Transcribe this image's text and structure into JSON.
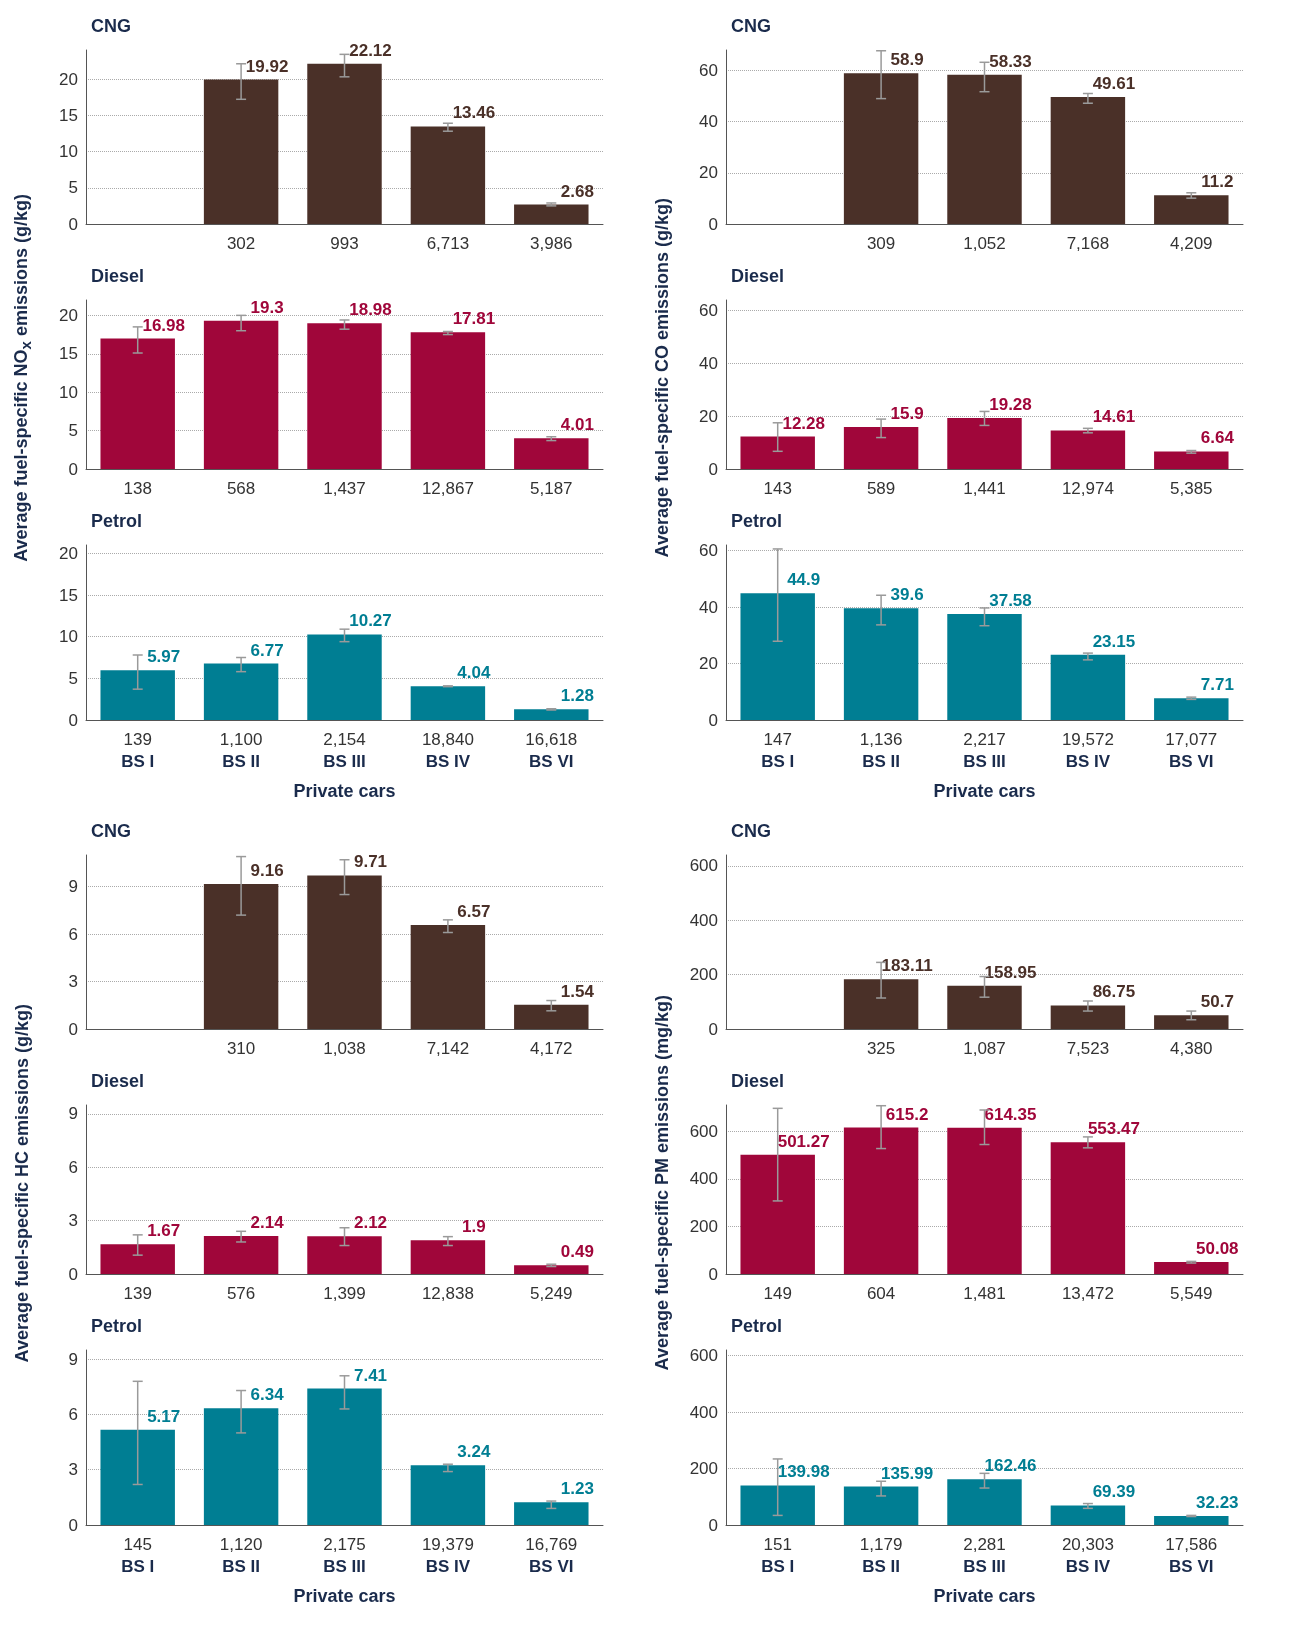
{
  "chart_data": [
    {
      "type": "bar",
      "title": "CNG",
      "categories": [
        null,
        "302",
        "993",
        "6,713",
        "3,986"
      ],
      "values": [
        null,
        19.92,
        22.12,
        13.46,
        2.68
      ],
      "errors": [
        null,
        [
          17.2,
          22.1
        ],
        [
          20.3,
          23.4
        ],
        [
          12.8,
          13.9
        ],
        [
          2.5,
          2.9
        ]
      ],
      "color": "#4a3028",
      "data_labels": true,
      "ylim": [
        0,
        24
      ],
      "yticks": [
        0,
        5,
        10,
        15,
        20
      ],
      "grid": "y"
    },
    {
      "type": "bar",
      "title": "Diesel",
      "ylabel": "Average fuel-specific NO$_{x}$ emissions (g/kg)",
      "categories": [
        "138",
        "568",
        "1,437",
        "12,867",
        "5,187"
      ],
      "values": [
        16.98,
        19.3,
        18.98,
        17.81,
        4.01
      ],
      "errors": [
        [
          15.1,
          18.5
        ],
        [
          18.0,
          20.0
        ],
        [
          18.2,
          19.4
        ],
        [
          17.5,
          17.9
        ],
        [
          3.7,
          4.2
        ]
      ],
      "color": "#a0063a",
      "data_labels": true,
      "ylim": [
        0,
        22
      ],
      "yticks": [
        0,
        5,
        10,
        15,
        20
      ],
      "grid": "y"
    },
    {
      "type": "bar",
      "title": "Petrol",
      "xlabel": "Private cars",
      "categories": [
        "139\nBS I",
        "1,100\nBS II",
        "2,154\nBS III",
        "18,840\nBS IV",
        "16,618\nBS VI"
      ],
      "values": [
        5.97,
        6.77,
        10.27,
        4.04,
        1.28
      ],
      "errors": [
        [
          3.7,
          7.8
        ],
        [
          5.8,
          7.5
        ],
        [
          9.4,
          10.9
        ],
        [
          4.0,
          4.1
        ],
        [
          1.2,
          1.35
        ]
      ],
      "color": "#007e93",
      "data_labels": true,
      "ylim": [
        0,
        21
      ],
      "yticks": [
        0,
        5,
        10,
        15,
        20
      ],
      "grid": "y"
    },
    {
      "type": "bar",
      "title": "CNG",
      "categories": [
        null,
        "309",
        "1,052",
        "7,168",
        "4,209"
      ],
      "values": [
        null,
        58.9,
        58.33,
        49.61,
        11.2
      ],
      "errors": [
        null,
        [
          49.0,
          67.7
        ],
        [
          51.7,
          63.2
        ],
        [
          47.2,
          51.0
        ],
        [
          10.1,
          12.2
        ]
      ],
      "color": "#4a3028",
      "data_labels": true,
      "ylim": [
        0,
        68
      ],
      "yticks": [
        0,
        20,
        40,
        60
      ],
      "grid": "y"
    },
    {
      "type": "bar",
      "title": "Diesel",
      "ylabel": "Average fuel-specific CO emissions (g/kg)",
      "categories": [
        "143",
        "589",
        "1,441",
        "12,974",
        "5,385"
      ],
      "values": [
        12.28,
        15.9,
        19.28,
        14.61,
        6.64
      ],
      "errors": [
        [
          6.7,
          17.5
        ],
        [
          11.9,
          18.9
        ],
        [
          16.5,
          21.8
        ],
        [
          13.7,
          15.4
        ],
        [
          6.0,
          7.0
        ]
      ],
      "color": "#a0063a",
      "data_labels": true,
      "ylim": [
        0,
        64
      ],
      "yticks": [
        0,
        20,
        40,
        60
      ],
      "grid": "y"
    },
    {
      "type": "bar",
      "title": "Petrol",
      "xlabel": "Private cars",
      "categories": [
        "147\nBS I",
        "1,136\nBS II",
        "2,217\nBS III",
        "19,572\nBS IV",
        "17,077\nBS VI"
      ],
      "values": [
        44.9,
        39.6,
        37.58,
        23.15,
        7.71
      ],
      "errors": [
        [
          27.9,
          60.6
        ],
        [
          33.7,
          44.2
        ],
        [
          33.4,
          39.7
        ],
        [
          21.3,
          23.7
        ],
        [
          7.3,
          8.1
        ]
      ],
      "color": "#007e93",
      "data_labels": true,
      "ylim": [
        0,
        62
      ],
      "yticks": [
        0,
        20,
        40,
        60
      ],
      "grid": "y"
    },
    {
      "type": "bar",
      "title": "CNG",
      "categories": [
        null,
        "310",
        "1,038",
        "7,142",
        "4,172"
      ],
      "values": [
        null,
        9.16,
        9.71,
        6.57,
        1.54
      ],
      "errors": [
        null,
        [
          7.2,
          10.9
        ],
        [
          8.5,
          10.7
        ],
        [
          6.1,
          6.9
        ],
        [
          1.15,
          1.8
        ]
      ],
      "color": "#4a3028",
      "data_labels": true,
      "ylim": [
        0,
        11
      ],
      "yticks": [
        0,
        3,
        6,
        9
      ],
      "grid": "y"
    },
    {
      "type": "bar",
      "title": "Diesel",
      "ylabel": "Average fuel-specific HC emissions (g/kg)",
      "categories": [
        "139",
        "576",
        "1,399",
        "12,838",
        "5,249"
      ],
      "values": [
        1.67,
        2.14,
        2.12,
        1.9,
        0.49
      ],
      "errors": [
        [
          1.06,
          2.2
        ],
        [
          1.8,
          2.4
        ],
        [
          1.6,
          2.6
        ],
        [
          1.6,
          2.1
        ],
        [
          0.42,
          0.55
        ]
      ],
      "color": "#a0063a",
      "data_labels": true,
      "ylim": [
        0,
        9.5
      ],
      "yticks": [
        0,
        3,
        6,
        9
      ],
      "grid": "y"
    },
    {
      "type": "bar",
      "title": "Petrol",
      "xlabel": "Private cars",
      "categories": [
        "145\nBS I",
        "1,120\nBS II",
        "2,175\nBS III",
        "19,379\nBS IV",
        "16,769\nBS VI"
      ],
      "values": [
        5.17,
        6.34,
        7.41,
        3.24,
        1.23
      ],
      "errors": [
        [
          2.2,
          7.8
        ],
        [
          5.0,
          7.3
        ],
        [
          6.3,
          8.1
        ],
        [
          2.9,
          3.3
        ],
        [
          0.9,
          1.3
        ]
      ],
      "color": "#007e93",
      "data_labels": true,
      "ylim": [
        0,
        9.5
      ],
      "yticks": [
        0,
        3,
        6,
        9
      ],
      "grid": "y"
    },
    {
      "type": "bar",
      "title": "CNG",
      "categories": [
        null,
        "325",
        "1,087",
        "7,523",
        "4,380"
      ],
      "values": [
        null,
        183.11,
        158.95,
        86.75,
        50.7
      ],
      "errors": [
        null,
        [
          114,
          245
        ],
        [
          117,
          193
        ],
        [
          66,
          103
        ],
        [
          34,
          66
        ]
      ],
      "color": "#4a3028",
      "data_labels": true,
      "ylim": [
        0,
        640
      ],
      "yticks": [
        0,
        200,
        400,
        600
      ],
      "grid": "y"
    },
    {
      "type": "bar",
      "title": "Diesel",
      "ylabel": "Average fuel-specific PM emissions (mg/kg)",
      "categories": [
        "149",
        "604",
        "1,481",
        "13,472",
        "5,549"
      ],
      "values": [
        501.27,
        615.2,
        614.35,
        553.47,
        50.08
      ],
      "errors": [
        [
          307,
          696
        ],
        [
          527,
          707
        ],
        [
          544,
          689
        ],
        [
          530,
          576
        ],
        [
          46,
          53
        ]
      ],
      "color": "#a0063a",
      "data_labels": true,
      "ylim": [
        0,
        710
      ],
      "yticks": [
        0,
        200,
        400,
        600
      ],
      "grid": "y"
    },
    {
      "type": "bar",
      "title": "Petrol",
      "xlabel": "Private cars",
      "categories": [
        "151\nBS I",
        "1,179\nBS II",
        "2,281\nBS III",
        "20,303\nBS IV",
        "17,586\nBS VI"
      ],
      "values": [
        139.98,
        135.99,
        162.46,
        69.39,
        32.23
      ],
      "errors": [
        [
          34,
          234
        ],
        [
          103,
          155
        ],
        [
          131,
          183
        ],
        [
          59,
          76
        ],
        [
          30,
          34
        ]
      ],
      "color": "#007e93",
      "data_labels": true,
      "ylim": [
        0,
        620
      ],
      "yticks": [
        0,
        200,
        400,
        600
      ],
      "grid": "y"
    }
  ]
}
